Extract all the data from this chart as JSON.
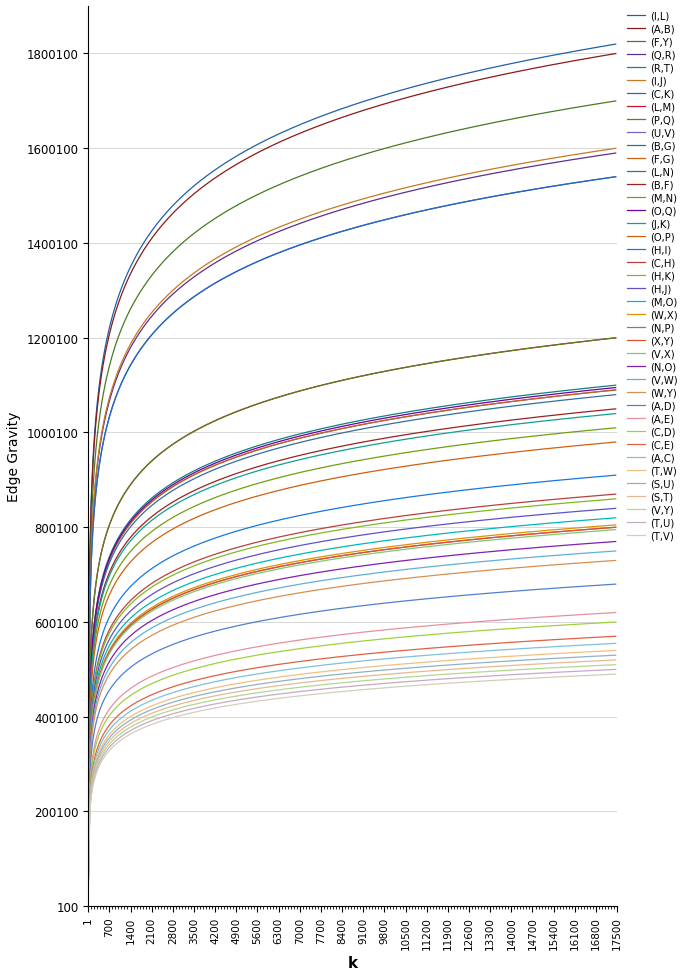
{
  "xlabel": "k",
  "ylabel": "Edge Gravity",
  "x_ticks": [
    1,
    700,
    1400,
    2100,
    2800,
    3500,
    4200,
    4900,
    5600,
    6300,
    7000,
    7700,
    8400,
    9100,
    9800,
    10500,
    11200,
    11900,
    12600,
    13300,
    14000,
    14700,
    15400,
    16100,
    16800,
    17500
  ],
  "ylim_min": 100,
  "ylim_max": 1900000,
  "xlim_min": 1,
  "xlim_max": 17500,
  "series": [
    {
      "label": "(I,L)",
      "color": "#2060a8",
      "final": 1820000
    },
    {
      "label": "(A,B)",
      "color": "#8b1a1a",
      "final": 1800000
    },
    {
      "label": "(F,Y)",
      "color": "#4a7a20",
      "final": 1700000
    },
    {
      "label": "(Q,R)",
      "color": "#5c3090",
      "final": 1590000
    },
    {
      "label": "(R,T)",
      "color": "#1a8080",
      "final": 1540000
    },
    {
      "label": "(I,J)",
      "color": "#c87820",
      "final": 1600000
    },
    {
      "label": "(C,K)",
      "color": "#3060d0",
      "final": 1540000
    },
    {
      "label": "(L,M)",
      "color": "#cc1430",
      "final": 1200000
    },
    {
      "label": "(P,Q)",
      "color": "#5a8020",
      "final": 1200000
    },
    {
      "label": "(U,V)",
      "color": "#8060c0",
      "final": 1090000
    },
    {
      "label": "(B,G)",
      "color": "#108080",
      "final": 1100000
    },
    {
      "label": "(F,G)",
      "color": "#c86010",
      "final": 1090000
    },
    {
      "label": "(L,N)",
      "color": "#3070a0",
      "final": 1080000
    },
    {
      "label": "(B,F)",
      "color": "#a02020",
      "final": 1050000
    },
    {
      "label": "(M,N)",
      "color": "#70a010",
      "final": 1010000
    },
    {
      "label": "(O,Q)",
      "color": "#7000a0",
      "final": 1095000
    },
    {
      "label": "(J,K)",
      "color": "#10a090",
      "final": 1040000
    },
    {
      "label": "(O,P)",
      "color": "#d06010",
      "final": 980000
    },
    {
      "label": "(H,I)",
      "color": "#1878e0",
      "final": 910000
    },
    {
      "label": "(C,H)",
      "color": "#b84040",
      "final": 870000
    },
    {
      "label": "(H,K)",
      "color": "#80b820",
      "final": 860000
    },
    {
      "label": "(H,J)",
      "color": "#6050c8",
      "final": 840000
    },
    {
      "label": "(M,O)",
      "color": "#00b8b8",
      "final": 820000
    },
    {
      "label": "(W,X)",
      "color": "#e09000",
      "final": 805000
    },
    {
      "label": "(N,P)",
      "color": "#a07070",
      "final": 800000
    },
    {
      "label": "(X,Y)",
      "color": "#e05030",
      "final": 800000
    },
    {
      "label": "(V,X)",
      "color": "#80c870",
      "final": 795000
    },
    {
      "label": "(N,O)",
      "color": "#8020b0",
      "final": 770000
    },
    {
      "label": "(V,W)",
      "color": "#60b0d8",
      "final": 750000
    },
    {
      "label": "(W,Y)",
      "color": "#d89050",
      "final": 730000
    },
    {
      "label": "(A,D)",
      "color": "#5080d0",
      "final": 680000
    },
    {
      "label": "(A,E)",
      "color": "#e890a0",
      "final": 620000
    },
    {
      "label": "(C,D)",
      "color": "#a0d040",
      "final": 600000
    },
    {
      "label": "(C,E)",
      "color": "#e06040",
      "final": 570000
    },
    {
      "label": "(A,C)",
      "color": "#80c0d8",
      "final": 555000
    },
    {
      "label": "(T,W)",
      "color": "#f0c080",
      "final": 540000
    },
    {
      "label": "(S,U)",
      "color": "#90b0c8",
      "final": 530000
    },
    {
      "label": "(S,T)",
      "color": "#e8b890",
      "final": 520000
    },
    {
      "label": "(V,Y)",
      "color": "#b0d890",
      "final": 510000
    },
    {
      "label": "(T,U)",
      "color": "#c8a8c8",
      "final": 500000
    },
    {
      "label": "(T,V)",
      "color": "#d0d0b8",
      "final": 490000
    }
  ],
  "yticks": [
    100,
    200100,
    400100,
    600100,
    800100,
    1000100,
    1200100,
    1400100,
    1600100,
    1800100
  ]
}
